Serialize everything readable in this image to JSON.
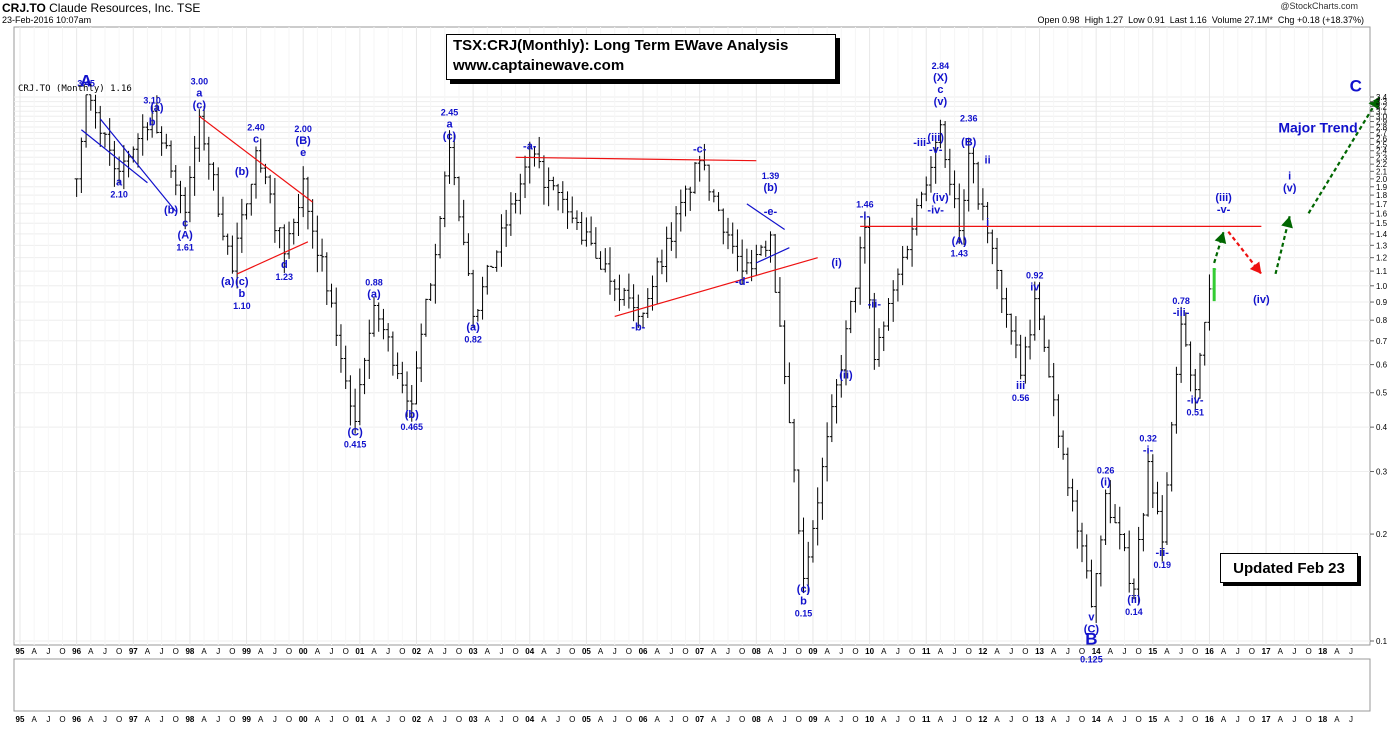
{
  "header": {
    "ticker": "CRJ.TO",
    "company": "Claude Resources, Inc.",
    "exchange": "TSE",
    "datetime": "23-Feb-2016 10:07am",
    "brand": "@StockCharts.com",
    "stats": [
      {
        "label": "Open",
        "value": "0.98"
      },
      {
        "label": "High",
        "value": "1.27"
      },
      {
        "label": "Low",
        "value": "0.91"
      },
      {
        "label": "Last",
        "value": "1.16"
      },
      {
        "label": "Volume",
        "value": "27.1M*"
      },
      {
        "label": "Chg",
        "value": "+0.18 (+18.37%)"
      }
    ]
  },
  "title_box": {
    "line1": "TSX:CRJ(Monthly): Long Term EWave Analysis",
    "line2": "www.captainewave.com"
  },
  "legend_text": "CRJ.TO (Monthly) 1.16",
  "updated_label": "Updated Feb 23",
  "colors": {
    "bars": "#000000",
    "wave_labels": "#1111cc",
    "trend_red": "#ee1111",
    "trend_blue": "#1111cc",
    "forecast_green": "#006600",
    "forecast_red": "#ee1111",
    "last_bar": "#33cc33"
  },
  "chart_data": {
    "type": "ohlc",
    "title": "TSX:CRJ(Monthly): Long Term EWave Analysis",
    "scale": "log",
    "ylim": [
      0.1,
      3.4
    ],
    "y_ticks": [
      0.1,
      0.2,
      0.3,
      0.4,
      0.5,
      0.6,
      0.7,
      0.8,
      0.9,
      1.0,
      1.1,
      1.2,
      1.3,
      1.4,
      1.5,
      1.6,
      1.7,
      1.8,
      1.9,
      2.0,
      2.1,
      2.2,
      2.3,
      2.4,
      2.5,
      2.6,
      2.7,
      2.8,
      2.9,
      3.0,
      3.1,
      3.2,
      3.3,
      3.4
    ],
    "y_tick_labels": [
      "0.1",
      "0.2",
      "0.3",
      "0.4",
      "0.5",
      "0.6",
      "0.7",
      "0.8",
      "0.9",
      "1.0",
      "1.1",
      "1.2",
      "1.3",
      "1.4",
      "1.5",
      "1.6",
      "1.7",
      "1.8",
      "1.9",
      "2.0",
      "2.1",
      "2.2",
      "2.3",
      "2.4",
      "2.5",
      "2.6",
      "2.7",
      "2.8",
      "2.9",
      "3.0",
      "3.1",
      "3.2",
      "3.3",
      "3.4"
    ],
    "x_range": [
      "1995-01",
      "2019-01"
    ],
    "x_axis_labels": [
      "95",
      "A",
      "J",
      "O",
      "96",
      "A",
      "J",
      "O",
      "97",
      "A",
      "J",
      "O",
      "98",
      "A",
      "J",
      "O",
      "99",
      "A",
      "J",
      "O",
      "00",
      "A",
      "J",
      "O",
      "01",
      "A",
      "J",
      "O",
      "02",
      "A",
      "J",
      "O",
      "03",
      "A",
      "J",
      "O",
      "04",
      "A",
      "J",
      "O",
      "05",
      "A",
      "J",
      "O",
      "06",
      "A",
      "J",
      "O",
      "07",
      "A",
      "J",
      "O",
      "08",
      "A",
      "J",
      "O",
      "09",
      "A",
      "J",
      "O",
      "10",
      "A",
      "J",
      "O",
      "11",
      "A",
      "J",
      "O",
      "12",
      "A",
      "J",
      "O",
      "13",
      "A",
      "J",
      "O",
      "14",
      "A",
      "J",
      "O",
      "15",
      "A",
      "J",
      "O",
      "16",
      "A",
      "J",
      "O",
      "17",
      "A",
      "J",
      "O",
      "18",
      "A",
      "J"
    ],
    "price_pivots": [
      {
        "date": "1996-01",
        "close": 2.0
      },
      {
        "date": "1996-03",
        "close": 3.45
      },
      {
        "date": "1996-10",
        "close": 2.1
      },
      {
        "date": "1997-05",
        "close": 3.1
      },
      {
        "date": "1997-12",
        "close": 1.61
      },
      {
        "date": "1998-03",
        "close": 3.0
      },
      {
        "date": "1998-10",
        "close": 1.1
      },
      {
        "date": "1999-03",
        "close": 2.4
      },
      {
        "date": "1999-09",
        "close": 1.23
      },
      {
        "date": "2000-01",
        "close": 2.0
      },
      {
        "date": "2000-12",
        "close": 0.415
      },
      {
        "date": "2001-04",
        "close": 0.88
      },
      {
        "date": "2001-12",
        "close": 0.465
      },
      {
        "date": "2002-08",
        "close": 2.45
      },
      {
        "date": "2003-01",
        "close": 0.82
      },
      {
        "date": "2004-01",
        "close": 2.3
      },
      {
        "date": "2005-12",
        "close": 0.82
      },
      {
        "date": "2007-01",
        "close": 2.25
      },
      {
        "date": "2007-10",
        "close": 1.1
      },
      {
        "date": "2008-04",
        "close": 1.39
      },
      {
        "date": "2008-11",
        "close": 0.15
      },
      {
        "date": "2009-12",
        "close": 1.46
      },
      {
        "date": "2010-02",
        "close": 0.62
      },
      {
        "date": "2011-04",
        "close": 2.84
      },
      {
        "date": "2011-08",
        "close": 1.43
      },
      {
        "date": "2011-10",
        "close": 2.36
      },
      {
        "date": "2012-09",
        "close": 0.56
      },
      {
        "date": "2012-12",
        "close": 0.92
      },
      {
        "date": "2013-12",
        "close": 0.125
      },
      {
        "date": "2014-03",
        "close": 0.26
      },
      {
        "date": "2014-09",
        "close": 0.14
      },
      {
        "date": "2014-12",
        "close": 0.32
      },
      {
        "date": "2015-03",
        "close": 0.19
      },
      {
        "date": "2015-07",
        "close": 0.78
      },
      {
        "date": "2015-10",
        "close": 0.51
      },
      {
        "date": "2016-01",
        "close": 0.98
      },
      {
        "date": "2016-02",
        "close": 1.16
      }
    ],
    "horizontal_line": {
      "value": 1.47,
      "from": "2009-11",
      "to": "2016-12"
    },
    "wave_labels": [
      {
        "text": "3.45",
        "date": "1996-03",
        "price": 3.45,
        "pos": "above"
      },
      {
        "text": "A",
        "date": "1996-03",
        "price": 3.45,
        "pos": "above",
        "big": true
      },
      {
        "text": "3.10",
        "date": "1997-05",
        "price": 3.1,
        "pos": "above"
      },
      {
        "text": "b",
        "date": "1997-05",
        "price": 3.1,
        "pos": "below"
      },
      {
        "text": "a",
        "date": "1996-10",
        "price": 2.1,
        "pos": "below"
      },
      {
        "text": "2.10",
        "date": "1996-10",
        "price": 2.1,
        "pos": "below2"
      },
      {
        "text": "c",
        "date": "1997-12",
        "price": 1.61,
        "pos": "below"
      },
      {
        "text": "(A)",
        "date": "1997-12",
        "price": 1.61,
        "pos": "below2"
      },
      {
        "text": "1.61",
        "date": "1997-12",
        "price": 1.61,
        "pos": "below3"
      },
      {
        "text": "(a)",
        "date": "1997-06",
        "price": 2.95,
        "pos": "above"
      },
      {
        "text": "(b)",
        "date": "1997-09",
        "price": 1.75,
        "pos": "below"
      },
      {
        "text": "3.00",
        "date": "1998-03",
        "price": 3.0,
        "pos": "above3"
      },
      {
        "text": "a",
        "date": "1998-03",
        "price": 3.0,
        "pos": "above2"
      },
      {
        "text": "(c)",
        "date": "1998-03",
        "price": 3.0,
        "pos": "above"
      },
      {
        "text": "2.40",
        "date": "1999-03",
        "price": 2.4,
        "pos": "above2"
      },
      {
        "text": "c",
        "date": "1999-03",
        "price": 2.4,
        "pos": "above"
      },
      {
        "text": "(b)",
        "date": "1998-12",
        "price": 1.95,
        "pos": "above"
      },
      {
        "text": "(a)",
        "date": "1998-09",
        "price": 1.1,
        "pos": "below"
      },
      {
        "text": "(c)",
        "date": "1998-12",
        "price": 1.1,
        "pos": "below"
      },
      {
        "text": "b",
        "date": "1998-12",
        "price": 1.1,
        "pos": "below2"
      },
      {
        "text": "1.10",
        "date": "1998-12",
        "price": 1.1,
        "pos": "below3"
      },
      {
        "text": "d",
        "date": "1999-09",
        "price": 1.23,
        "pos": "below"
      },
      {
        "text": "1.23",
        "date": "1999-09",
        "price": 1.23,
        "pos": "below2"
      },
      {
        "text": "2.00",
        "date": "2000-01",
        "price": 2.2,
        "pos": "above3"
      },
      {
        "text": "(B)",
        "date": "2000-01",
        "price": 2.2,
        "pos": "above2"
      },
      {
        "text": "e",
        "date": "2000-01",
        "price": 2.2,
        "pos": "above"
      },
      {
        "text": "(C)",
        "date": "2000-12",
        "price": 0.415,
        "pos": "below"
      },
      {
        "text": "0.415",
        "date": "2000-12",
        "price": 0.415,
        "pos": "below2"
      },
      {
        "text": "0.88",
        "date": "2001-04",
        "price": 0.88,
        "pos": "above2"
      },
      {
        "text": "(a)",
        "date": "2001-04",
        "price": 0.88,
        "pos": "above"
      },
      {
        "text": "(b)",
        "date": "2001-12",
        "price": 0.465,
        "pos": "below"
      },
      {
        "text": "0.465",
        "date": "2001-12",
        "price": 0.465,
        "pos": "below2"
      },
      {
        "text": "2.45",
        "date": "2002-08",
        "price": 2.45,
        "pos": "above3"
      },
      {
        "text": "a",
        "date": "2002-08",
        "price": 2.45,
        "pos": "above2"
      },
      {
        "text": "(c)",
        "date": "2002-08",
        "price": 2.45,
        "pos": "above"
      },
      {
        "text": "(a)",
        "date": "2003-01",
        "price": 0.82,
        "pos": "below"
      },
      {
        "text": "0.82",
        "date": "2003-01",
        "price": 0.82,
        "pos": "below2"
      },
      {
        "text": "-a-",
        "date": "2004-01",
        "price": 2.3,
        "pos": "above"
      },
      {
        "text": "-b-",
        "date": "2005-12",
        "price": 0.82,
        "pos": "below"
      },
      {
        "text": "-c-",
        "date": "2007-01",
        "price": 2.25,
        "pos": "above"
      },
      {
        "text": "-d-",
        "date": "2007-10",
        "price": 1.1,
        "pos": "below"
      },
      {
        "text": "1.39",
        "date": "2008-04",
        "price": 1.39,
        "pos": "above5"
      },
      {
        "text": "(b)",
        "date": "2008-04",
        "price": 1.39,
        "pos": "above4"
      },
      {
        "text": "-e-",
        "date": "2008-04",
        "price": 1.39,
        "pos": "above2"
      },
      {
        "text": "(c)",
        "date": "2008-11",
        "price": 0.15,
        "pos": "below"
      },
      {
        "text": "b",
        "date": "2008-11",
        "price": 0.15,
        "pos": "below2"
      },
      {
        "text": "0.15",
        "date": "2008-11",
        "price": 0.15,
        "pos": "below3"
      },
      {
        "text": "(i)",
        "date": "2009-06",
        "price": 1.08,
        "pos": "above"
      },
      {
        "text": "(ii)",
        "date": "2009-08",
        "price": 0.6,
        "pos": "below"
      },
      {
        "text": "1.46",
        "date": "2009-12",
        "price": 1.46,
        "pos": "above2"
      },
      {
        "text": "-i-",
        "date": "2009-12",
        "price": 1.46,
        "pos": "above"
      },
      {
        "text": "-ii-",
        "date": "2010-02",
        "price": 0.95,
        "pos": "below"
      },
      {
        "text": "-iii-",
        "date": "2010-12",
        "price": 2.35,
        "pos": "above"
      },
      {
        "text": "-iv-",
        "date": "2011-03",
        "price": 1.75,
        "pos": "below"
      },
      {
        "text": "(iii)",
        "date": "2011-03",
        "price": 2.8,
        "pos": "below"
      },
      {
        "text": "-v-",
        "date": "2011-03",
        "price": 2.8,
        "pos": "below2"
      },
      {
        "text": "(iv)",
        "date": "2011-04",
        "price": 1.9,
        "pos": "below"
      },
      {
        "text": "2.84",
        "date": "2011-04",
        "price": 2.84,
        "pos": "above5"
      },
      {
        "text": "(X)",
        "date": "2011-04",
        "price": 2.84,
        "pos": "above4"
      },
      {
        "text": "c",
        "date": "2011-04",
        "price": 2.84,
        "pos": "above3"
      },
      {
        "text": "(v)",
        "date": "2011-04",
        "price": 2.84,
        "pos": "above2"
      },
      {
        "text": "2.36",
        "date": "2011-10",
        "price": 2.36,
        "pos": "above3"
      },
      {
        "text": "(B)",
        "date": "2011-10",
        "price": 2.36,
        "pos": "above"
      },
      {
        "text": "ii",
        "date": "2012-02",
        "price": 2.1,
        "pos": "above"
      },
      {
        "text": "i",
        "date": "2012-02",
        "price": 1.4,
        "pos": "above"
      },
      {
        "text": "(A)",
        "date": "2011-08",
        "price": 1.43,
        "pos": "below"
      },
      {
        "text": "1.43",
        "date": "2011-08",
        "price": 1.43,
        "pos": "below2"
      },
      {
        "text": "0.92",
        "date": "2012-12",
        "price": 0.92,
        "pos": "above2"
      },
      {
        "text": "iv",
        "date": "2012-12",
        "price": 0.92,
        "pos": "above"
      },
      {
        "text": "iii",
        "date": "2012-09",
        "price": 0.56,
        "pos": "below"
      },
      {
        "text": "0.56",
        "date": "2012-09",
        "price": 0.56,
        "pos": "below2"
      },
      {
        "text": "0.26",
        "date": "2014-03",
        "price": 0.26,
        "pos": "above2"
      },
      {
        "text": "(i)",
        "date": "2014-03",
        "price": 0.26,
        "pos": "above"
      },
      {
        "text": "(C)",
        "date": "2013-12",
        "price": 0.125,
        "pos": "below2"
      },
      {
        "text": "v",
        "date": "2013-12",
        "price": 0.125,
        "pos": "below"
      },
      {
        "text": "B",
        "date": "2013-12",
        "price": 0.125,
        "pos": "below3",
        "big": true
      },
      {
        "text": "0.125",
        "date": "2013-12",
        "price": 0.125,
        "pos": "below4"
      },
      {
        "text": "(ii)",
        "date": "2014-09",
        "price": 0.14,
        "pos": "below"
      },
      {
        "text": "0.14",
        "date": "2014-09",
        "price": 0.14,
        "pos": "below2"
      },
      {
        "text": "0.32",
        "date": "2014-12",
        "price": 0.32,
        "pos": "above2"
      },
      {
        "text": "-i-",
        "date": "2014-12",
        "price": 0.32,
        "pos": "above"
      },
      {
        "text": "-ii-",
        "date": "2015-03",
        "price": 0.19,
        "pos": "below"
      },
      {
        "text": "0.19",
        "date": "2015-03",
        "price": 0.19,
        "pos": "below2"
      },
      {
        "text": "0.78",
        "date": "2015-07",
        "price": 0.78,
        "pos": "above2"
      },
      {
        "text": "-iii-",
        "date": "2015-07",
        "price": 0.78,
        "pos": "above"
      },
      {
        "text": "-iv-",
        "date": "2015-10",
        "price": 0.51,
        "pos": "below"
      },
      {
        "text": "0.51",
        "date": "2015-10",
        "price": 0.51,
        "pos": "below2"
      },
      {
        "text": "(iii)",
        "date": "2016-04",
        "price": 1.52,
        "pos": "above2"
      },
      {
        "text": "-v-",
        "date": "2016-04",
        "price": 1.52,
        "pos": "above"
      },
      {
        "text": "(iv)",
        "date": "2016-12",
        "price": 0.98,
        "pos": "below"
      },
      {
        "text": "i",
        "date": "2017-06",
        "price": 1.75,
        "pos": "above2"
      },
      {
        "text": "(v)",
        "date": "2017-06",
        "price": 1.75,
        "pos": "above"
      },
      {
        "text": "C",
        "date": "2018-08",
        "price": 3.35,
        "pos": "above",
        "big": true
      },
      {
        "text": "Major Trend",
        "date": "2017-12",
        "price": 2.7,
        "pos": "center",
        "big": true
      }
    ],
    "trend_lines": [
      {
        "color": "blue",
        "from": {
          "date": "1996-06",
          "price": 2.95
        },
        "to": {
          "date": "1997-10",
          "price": 1.62
        }
      },
      {
        "color": "blue",
        "from": {
          "date": "1996-02",
          "price": 2.75
        },
        "to": {
          "date": "1997-04",
          "price": 1.95
        }
      },
      {
        "color": "red",
        "from": {
          "date": "1998-03",
          "price": 3.0
        },
        "to": {
          "date": "2000-03",
          "price": 1.72
        }
      },
      {
        "color": "red",
        "from": {
          "date": "1998-11",
          "price": 1.08
        },
        "to": {
          "date": "2000-02",
          "price": 1.33
        }
      },
      {
        "color": "red",
        "from": {
          "date": "2003-10",
          "price": 2.3
        },
        "to": {
          "date": "2008-01",
          "price": 2.25
        }
      },
      {
        "color": "red",
        "from": {
          "date": "2005-07",
          "price": 0.82
        },
        "to": {
          "date": "2009-02",
          "price": 1.2
        }
      },
      {
        "color": "blue",
        "from": {
          "date": "2007-11",
          "price": 1.7
        },
        "to": {
          "date": "2008-07",
          "price": 1.44
        }
      },
      {
        "color": "blue",
        "from": {
          "date": "2008-01",
          "price": 1.16
        },
        "to": {
          "date": "2008-08",
          "price": 1.28
        }
      }
    ],
    "forecast_arrows": [
      {
        "color": "green",
        "from": {
          "date": "2016-02",
          "price": 1.16
        },
        "to": {
          "date": "2016-04",
          "price": 1.42
        }
      },
      {
        "color": "red",
        "from": {
          "date": "2016-05",
          "price": 1.42
        },
        "to": {
          "date": "2016-12",
          "price": 1.08
        }
      },
      {
        "color": "green",
        "from": {
          "date": "2017-03",
          "price": 1.08
        },
        "to": {
          "date": "2017-06",
          "price": 1.57
        }
      },
      {
        "color": "green",
        "from": {
          "date": "2017-10",
          "price": 1.6
        },
        "to": {
          "date": "2019-01",
          "price": 3.4
        }
      }
    ]
  }
}
